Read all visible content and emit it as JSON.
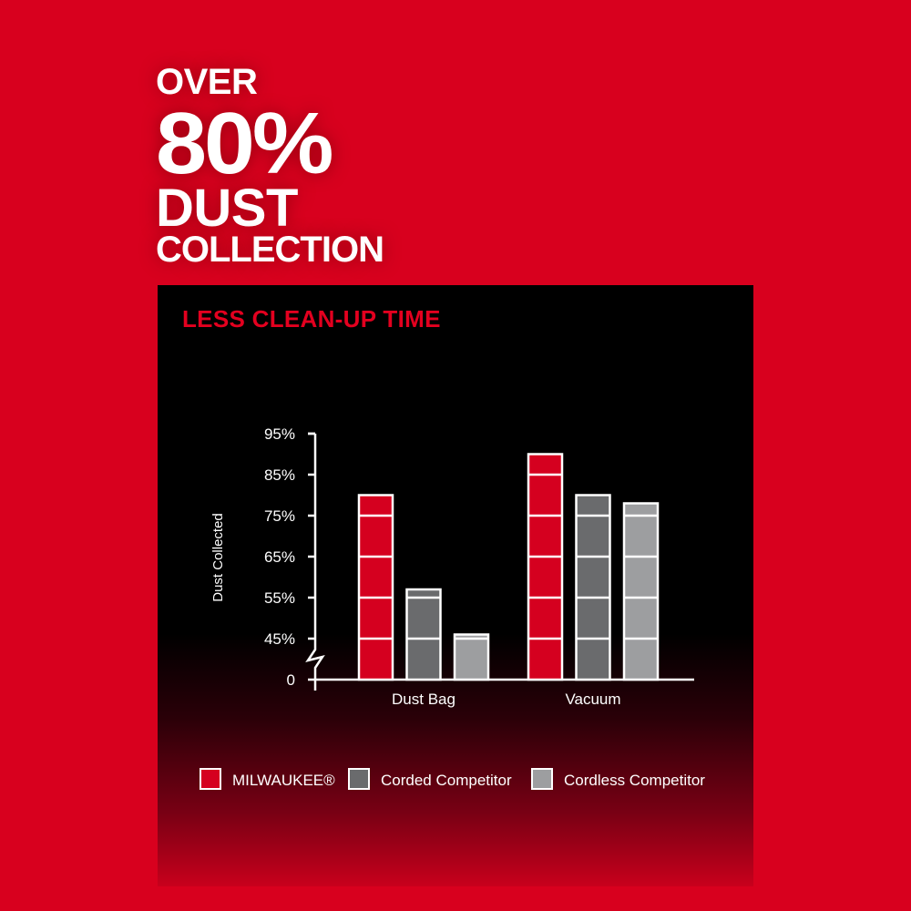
{
  "headline": [
    "OVER",
    "80%",
    "DUST",
    "COLLECTION"
  ],
  "subtitle": "LESS CLEAN-UP TIME",
  "colors": {
    "background": "#d8001e",
    "panel": "#000000",
    "subtitle": "#e3001f"
  },
  "chart_data": {
    "type": "bar",
    "title": "",
    "xlabel": "",
    "ylabel": "Dust Collected",
    "categories": [
      "Dust Bag",
      "Vacuum"
    ],
    "y_ticks": [
      "0",
      "45%",
      "55%",
      "65%",
      "75%",
      "85%",
      "95%"
    ],
    "y_tick_values": [
      0,
      45,
      55,
      65,
      75,
      85,
      95
    ],
    "axis_break": "between 0 and 45%",
    "ylim": [
      0,
      95
    ],
    "grid": false,
    "legend_position": "bottom",
    "series": [
      {
        "name": "MILWAUKEE®",
        "color": "#d5001f",
        "values": [
          80,
          90
        ]
      },
      {
        "name": "Corded Competitor",
        "color": "#6a6b6d",
        "values": [
          57,
          80
        ]
      },
      {
        "name": "Cordless Competitor",
        "color": "#9d9ea0",
        "values": [
          46,
          78
        ]
      }
    ]
  }
}
